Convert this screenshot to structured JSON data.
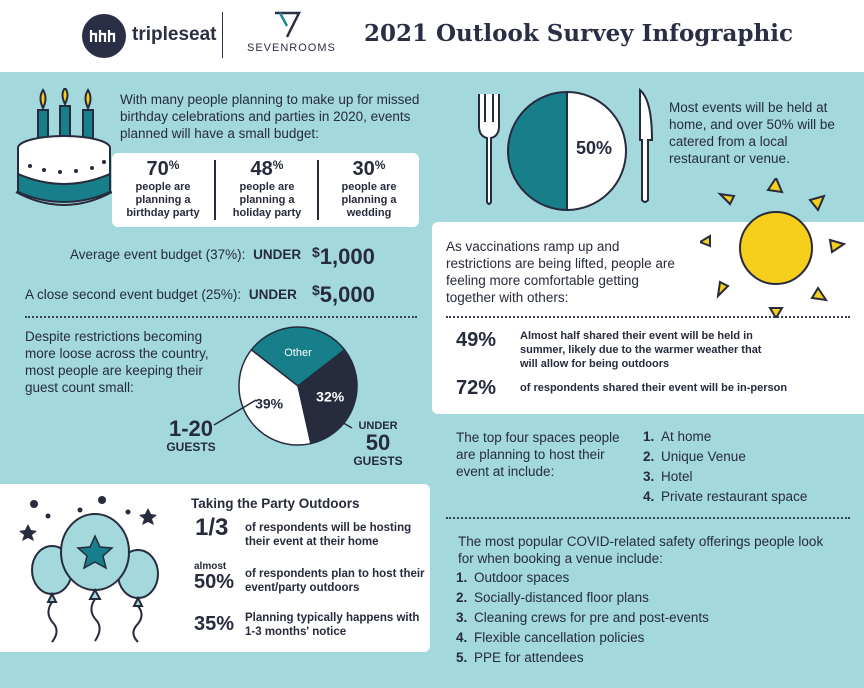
{
  "header": {
    "brand1": "tripleseat",
    "brand2": "SEVENROOMS",
    "title": "2021 Outlook Survey Infographic"
  },
  "budget": {
    "intro": "With many people planning to make up for missed birthday celebrations and parties in 2020, events planned will have a small budget:",
    "stats": [
      {
        "pct": "70",
        "label": "people are planning a birthday party"
      },
      {
        "pct": "48",
        "label": "people are planning a holiday party"
      },
      {
        "pct": "30",
        "label": "people are planning a wedding"
      }
    ],
    "avg_label": "Average event budget (37%):",
    "avg_under": "UNDER",
    "avg_value": "1,000",
    "second_label": "A close second event budget (25%):",
    "second_under": "UNDER",
    "second_value": "5,000"
  },
  "guests": {
    "text": "Despite restrictions becoming more loose across the country, most people are keeping their guest count small:",
    "pie": {
      "slices": [
        {
          "label": "Other",
          "value": 29,
          "color": "#167f89"
        },
        {
          "label": "32%",
          "value": 32,
          "color": "#262b3d"
        },
        {
          "label": "39%",
          "value": 39,
          "color": "#ffffff"
        }
      ]
    },
    "small_label": "1-20",
    "small_sub": "GUESTS",
    "large_under": "UNDER",
    "large_label": "50",
    "large_sub": "GUESTS"
  },
  "outdoors": {
    "title": "Taking the Party Outdoors",
    "items": [
      {
        "stat": "1/3",
        "text": "of respondents will be hosting their event at their home"
      },
      {
        "pre": "almost",
        "stat": "50%",
        "text": "of respondents plan to host their event/party outdoors"
      },
      {
        "stat": "35%",
        "text": "Planning typically happens with 1-3 months' notice"
      }
    ]
  },
  "home": {
    "pct": "50%",
    "text": "Most events will be held at home, and over 50% will be catered from a local restaurant or venue."
  },
  "vaccination": {
    "text": "As vaccinations ramp up and restrictions are being lifted, people are feeling more comfortable getting together with others:",
    "stats": [
      {
        "pct": "49%",
        "text": "Almost half shared their event will be held in summer, likely due to the warmer weather that will allow for being outdoors"
      },
      {
        "pct": "72%",
        "text": "of respondents shared their event will be in-person"
      }
    ]
  },
  "spaces": {
    "text": "The top four spaces people are planning to host their event at include:",
    "items": [
      "At home",
      "Unique Venue",
      "Hotel",
      "Private restaurant space"
    ]
  },
  "safety": {
    "text": "The most popular COVID-related safety offerings people look for when booking a venue include:",
    "items": [
      "Outdoor spaces",
      "Socially-distanced floor plans",
      "Cleaning crews for pre and post-events",
      "Flexible cancellation policies",
      "PPE for attendees"
    ]
  }
}
